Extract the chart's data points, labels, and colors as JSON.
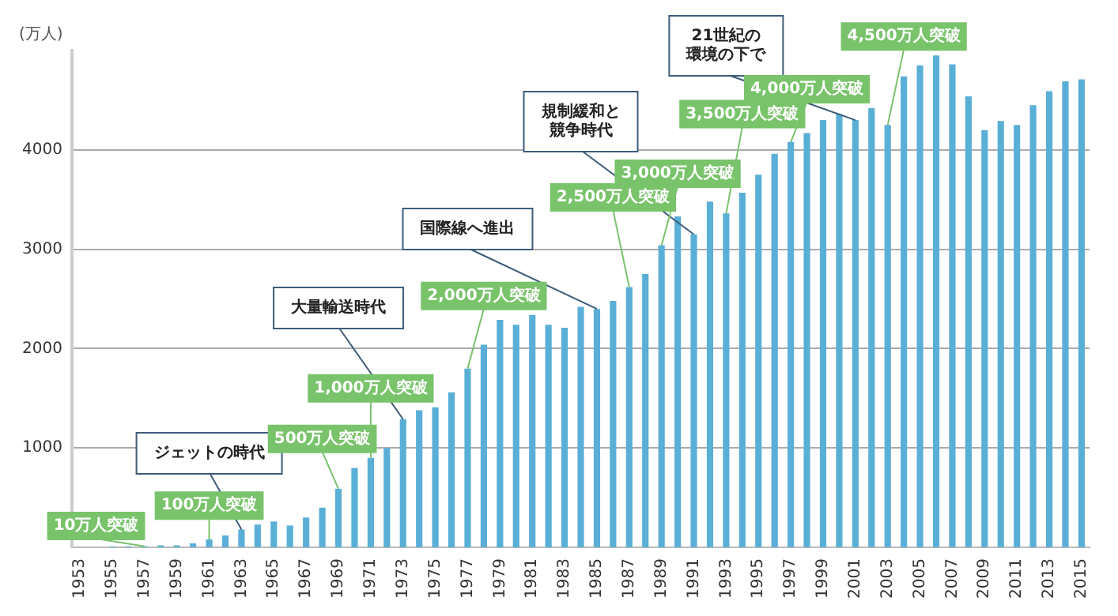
{
  "chart_data": {
    "type": "bar",
    "ylabel": "(万人)",
    "categories": [
      "1953",
      null,
      "1955",
      null,
      "1957",
      null,
      "1959",
      null,
      "1961",
      null,
      "1963",
      null,
      "1965",
      null,
      "1967",
      null,
      "1969",
      null,
      "1971",
      null,
      "1973",
      null,
      "1975",
      null,
      "1977",
      null,
      "1979",
      null,
      "1981",
      null,
      "1983",
      null,
      "1985",
      null,
      "1987",
      null,
      "1989",
      null,
      "1991",
      null,
      "1993",
      null,
      "1995",
      null,
      "1997",
      null,
      "1999",
      null,
      "2001",
      null,
      "2003",
      null,
      "2005",
      null,
      "2007",
      null,
      "2009",
      null,
      "2011",
      null,
      "2013",
      null,
      "2015"
    ],
    "values": [
      0,
      0,
      10,
      10,
      10,
      20,
      20,
      40,
      80,
      120,
      180,
      230,
      260,
      220,
      300,
      400,
      590,
      800,
      900,
      1000,
      1290,
      1380,
      1410,
      1560,
      1800,
      2040,
      2290,
      2240,
      2340,
      2240,
      2210,
      2420,
      2400,
      2480,
      2620,
      2750,
      3040,
      3330,
      3150,
      3480,
      3360,
      3570,
      3750,
      3960,
      4080,
      4170,
      4300,
      4360,
      4300,
      4420,
      4250,
      4740,
      4850,
      4950,
      4860,
      4540,
      4200,
      4290,
      4250,
      4450,
      4590,
      4690,
      4710
    ],
    "color": "#5aafd6",
    "ylim": [
      0,
      5000
    ],
    "yticks": [
      1000,
      2000,
      3000,
      4000
    ],
    "grid": "y",
    "legend": false,
    "annotations": [
      {
        "text": "ジェットの時代",
        "x": "1963",
        "y": 180
      },
      {
        "text": "大量輸送時代",
        "x": "1973",
        "y": 1290
      },
      {
        "text": "国際線へ進出",
        "x": "1985",
        "y": 2400
      },
      {
        "text": "規制緩和と競争時代",
        "x": "1991",
        "y": 3150
      },
      {
        "text": "21世紀の環境の下で",
        "x": "2001",
        "y": 4300
      },
      {
        "text": "10万人突破",
        "x": "1957",
        "y": 10
      },
      {
        "text": "100万人突破",
        "x": "1961",
        "y": 80
      },
      {
        "text": "500万人突破",
        "x": "1969",
        "y": 590
      },
      {
        "text": "1,000万人突破",
        "x": "1971",
        "y": 900
      },
      {
        "text": "2,000万人突破",
        "x": "1977",
        "y": 1800
      },
      {
        "text": "2,500万人突破",
        "x": "1987",
        "y": 2620
      },
      {
        "text": "3,000万人突破",
        "x": "1989",
        "y": 3040
      },
      {
        "text": "3,500万人突破",
        "x": "1993",
        "y": 3360
      },
      {
        "text": "4,000万人突破",
        "x": "1997",
        "y": 4080
      },
      {
        "text": "4,500万人突破",
        "x": "2003",
        "y": 4250
      }
    ]
  }
}
